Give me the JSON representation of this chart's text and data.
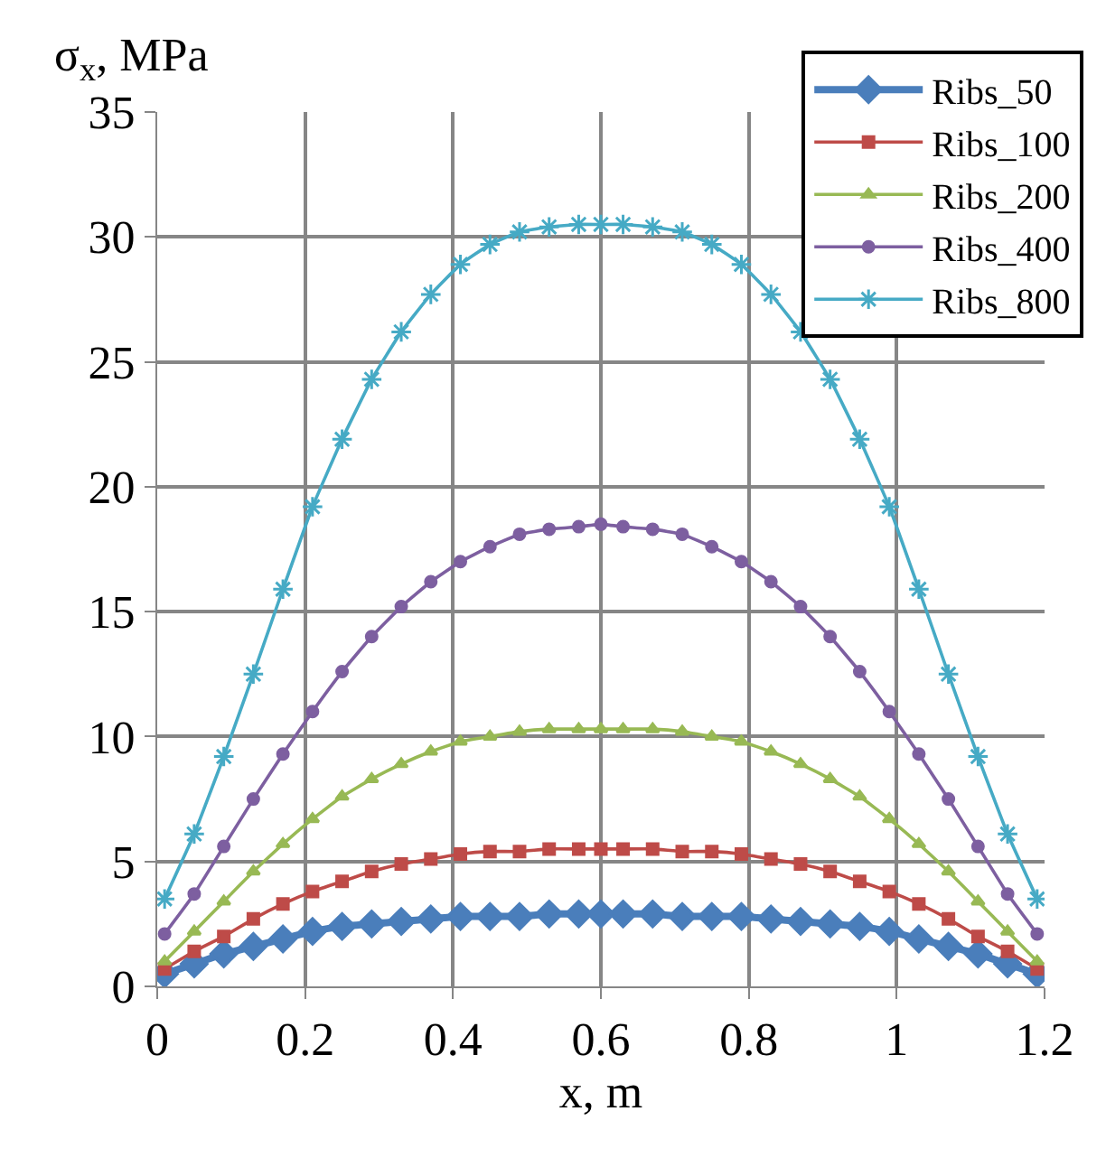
{
  "chart_data": {
    "type": "line",
    "xlabel": "x, m",
    "ylabel": "σ$_{x}$, MPa",
    "x": [
      0.01,
      0.05,
      0.09,
      0.13,
      0.17,
      0.21,
      0.25,
      0.29,
      0.33,
      0.37,
      0.41,
      0.45,
      0.49,
      0.53,
      0.57,
      0.6,
      0.63,
      0.67,
      0.71,
      0.75,
      0.79,
      0.83,
      0.87,
      0.91,
      0.95,
      0.99,
      1.03,
      1.07,
      1.11,
      1.15,
      1.19
    ],
    "series": [
      {
        "name": "Ribs_50",
        "color": "#4a7ebb",
        "marker": "diamond",
        "values": [
          0.5,
          0.9,
          1.3,
          1.6,
          1.9,
          2.2,
          2.4,
          2.5,
          2.6,
          2.7,
          2.8,
          2.8,
          2.8,
          2.9,
          2.9,
          2.9,
          2.9,
          2.9,
          2.8,
          2.8,
          2.8,
          2.7,
          2.6,
          2.5,
          2.4,
          2.2,
          1.9,
          1.6,
          1.3,
          0.9,
          0.5
        ]
      },
      {
        "name": "Ribs_100",
        "color": "#be4b48",
        "marker": "square",
        "values": [
          0.7,
          1.4,
          2.0,
          2.7,
          3.3,
          3.8,
          4.2,
          4.6,
          4.9,
          5.1,
          5.3,
          5.4,
          5.4,
          5.5,
          5.5,
          5.5,
          5.5,
          5.5,
          5.4,
          5.4,
          5.3,
          5.1,
          4.9,
          4.6,
          4.2,
          3.8,
          3.3,
          2.7,
          2.0,
          1.4,
          0.7
        ]
      },
      {
        "name": "Ribs_200",
        "color": "#98b954",
        "marker": "triangle",
        "values": [
          1.0,
          2.2,
          3.4,
          4.6,
          5.7,
          6.7,
          7.6,
          8.3,
          8.9,
          9.4,
          9.8,
          10.0,
          10.2,
          10.3,
          10.3,
          10.3,
          10.3,
          10.3,
          10.2,
          10.0,
          9.8,
          9.4,
          8.9,
          8.3,
          7.6,
          6.7,
          5.7,
          4.6,
          3.4,
          2.2,
          1.0
        ]
      },
      {
        "name": "Ribs_400",
        "color": "#7d5fa0",
        "marker": "circle",
        "values": [
          2.1,
          3.7,
          5.6,
          7.5,
          9.3,
          11.0,
          12.6,
          14.0,
          15.2,
          16.2,
          17.0,
          17.6,
          18.1,
          18.3,
          18.4,
          18.5,
          18.4,
          18.3,
          18.1,
          17.6,
          17.0,
          16.2,
          15.2,
          14.0,
          12.6,
          11.0,
          9.3,
          7.5,
          5.6,
          3.7,
          2.1
        ]
      },
      {
        "name": "Ribs_800",
        "color": "#46aac5",
        "marker": "cross",
        "values": [
          3.5,
          6.1,
          9.2,
          12.5,
          15.9,
          19.2,
          21.9,
          24.3,
          26.2,
          27.7,
          28.9,
          29.7,
          30.2,
          30.4,
          30.5,
          30.5,
          30.5,
          30.4,
          30.2,
          29.7,
          28.9,
          27.7,
          26.2,
          24.3,
          21.9,
          19.2,
          15.9,
          12.5,
          9.2,
          6.1,
          3.5
        ]
      }
    ],
    "xlim": [
      0,
      1.2
    ],
    "xticks": [
      0,
      {
        "value": 0.2,
        "label": "0.2"
      },
      {
        "value": 0.4,
        "label": "0.4"
      },
      {
        "value": 0.6,
        "label": "0.6"
      },
      {
        "value": 0.8,
        "label": "0.8"
      },
      1,
      {
        "value": 1.2,
        "label": "1.2"
      }
    ],
    "ylim": [
      0,
      35
    ],
    "yticks": [
      0,
      5,
      10,
      15,
      20,
      25,
      30,
      35
    ],
    "grid": true,
    "legend": "top right",
    "line_style": "solid"
  }
}
